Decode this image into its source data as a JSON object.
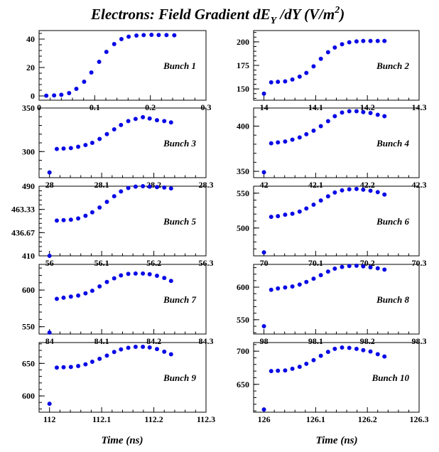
{
  "title": {
    "main": "Electrons: Field Gradient dE",
    "sub": "Y",
    "rest": " /dY (V/m",
    "sup": "2",
    "end": ")"
  },
  "xlabels": [
    "Time (ns)",
    "Time (ns)"
  ],
  "colors": {
    "marker": "#0a0ae6",
    "axes": "#000000",
    "background": "#ffffff"
  },
  "chart_data": [
    {
      "type": "scatter",
      "label": "Bunch 1",
      "xlim": [
        0,
        0.3
      ],
      "ylim": [
        -3,
        46
      ],
      "xticks": [
        "0",
        "0.1",
        "0.2",
        "0.3"
      ],
      "xtick_values": [
        0,
        0.1,
        0.2,
        0.3
      ],
      "yticks": [
        "0",
        "20",
        "40"
      ],
      "ytick_values": [
        0,
        20,
        40
      ],
      "x": [
        0.013,
        0.027,
        0.04,
        0.054,
        0.067,
        0.081,
        0.094,
        0.108,
        0.121,
        0.135,
        0.148,
        0.161,
        0.175,
        0.188,
        0.202,
        0.215,
        0.229,
        0.243
      ],
      "y": [
        0.2,
        0.4,
        0.8,
        2.0,
        5.0,
        10.0,
        16.5,
        24.0,
        31.0,
        36.5,
        40.0,
        41.7,
        42.5,
        42.8,
        43.0,
        42.9,
        42.8,
        42.7
      ]
    },
    {
      "type": "scatter",
      "label": "Bunch 2",
      "xlim": [
        13.98,
        14.3
      ],
      "ylim": [
        138,
        212
      ],
      "xticks": [
        "14",
        "14.1",
        "14.2",
        "14.3"
      ],
      "xtick_values": [
        14.0,
        14.1,
        14.2,
        14.3
      ],
      "yticks": [
        "150",
        "175",
        "200"
      ],
      "ytick_values": [
        150,
        175,
        200
      ],
      "x": [
        14.0,
        14.014,
        14.027,
        14.041,
        14.055,
        14.069,
        14.082,
        14.096,
        14.11,
        14.124,
        14.137,
        14.151,
        14.165,
        14.179,
        14.192,
        14.206,
        14.22,
        14.233
      ],
      "y": [
        145,
        157,
        157.5,
        158,
        160,
        163,
        167,
        174,
        182,
        189,
        194,
        197.5,
        199.5,
        200.5,
        201,
        201,
        201,
        201
      ]
    },
    {
      "type": "scatter",
      "label": "Bunch 3",
      "xlim": [
        27.98,
        28.3
      ],
      "ylim": [
        270,
        350
      ],
      "xticks": [
        "28",
        "28.1",
        "28.2",
        "28.3"
      ],
      "xtick_values": [
        28.0,
        28.1,
        28.2,
        28.3
      ],
      "yticks": [
        "300",
        "350"
      ],
      "ytick_values": [
        300,
        350
      ],
      "x": [
        28.0,
        28.014,
        28.027,
        28.041,
        28.055,
        28.069,
        28.082,
        28.096,
        28.11,
        28.124,
        28.137,
        28.151,
        28.165,
        28.179,
        28.192,
        28.206,
        28.22,
        28.233
      ],
      "y": [
        276,
        303,
        303.5,
        304,
        305.5,
        307.5,
        310,
        314.5,
        320,
        325.5,
        330.5,
        335,
        337.5,
        339.5,
        338,
        336,
        335,
        333.5
      ]
    },
    {
      "type": "scatter",
      "label": "Bunch 4",
      "xlim": [
        41.98,
        42.3
      ],
      "ylim": [
        343,
        420
      ],
      "xticks": [
        "42",
        "42.1",
        "42.2",
        "42.3"
      ],
      "xtick_values": [
        42.0,
        42.1,
        42.2,
        42.3
      ],
      "yticks": [
        "350",
        "400"
      ],
      "ytick_values": [
        350,
        400
      ],
      "x": [
        42.0,
        42.014,
        42.027,
        42.041,
        42.055,
        42.069,
        42.082,
        42.096,
        42.11,
        42.124,
        42.137,
        42.151,
        42.165,
        42.179,
        42.192,
        42.206,
        42.22,
        42.233
      ],
      "y": [
        349,
        381,
        382,
        383,
        385,
        387.5,
        391,
        395,
        400,
        405.5,
        411,
        415,
        416.5,
        416.5,
        415.5,
        414.5,
        412.5,
        411
      ]
    },
    {
      "type": "scatter",
      "label": "Bunch 5",
      "xlim": [
        55.98,
        56.3
      ],
      "ylim": [
        410,
        490
      ],
      "xticks": [
        "56",
        "56.1",
        "56.2",
        "56.3"
      ],
      "xtick_values": [
        56.0,
        56.1,
        56.2,
        56.3
      ],
      "yticks": [
        "410",
        "436.67",
        "463.33",
        "490"
      ],
      "ytick_values": [
        410,
        436.67,
        463.33,
        490
      ],
      "x": [
        56.0,
        56.014,
        56.027,
        56.041,
        56.055,
        56.069,
        56.082,
        56.096,
        56.11,
        56.124,
        56.137,
        56.151,
        56.165,
        56.179,
        56.192,
        56.206,
        56.22,
        56.233
      ],
      "y": [
        410,
        450.5,
        451,
        451.5,
        453,
        456,
        460,
        465.5,
        472,
        478.5,
        484,
        488,
        489.5,
        490,
        489.5,
        489,
        488.5,
        487.5
      ]
    },
    {
      "type": "scatter",
      "label": "Bunch 6",
      "xlim": [
        69.98,
        70.3
      ],
      "ylim": [
        460,
        560
      ],
      "xticks": [
        "70",
        "70.1",
        "70.2",
        "70.3"
      ],
      "xtick_values": [
        70.0,
        70.1,
        70.2,
        70.3
      ],
      "yticks": [
        "500",
        "550"
      ],
      "ytick_values": [
        500,
        550
      ],
      "x": [
        70.0,
        70.014,
        70.027,
        70.041,
        70.055,
        70.069,
        70.082,
        70.096,
        70.11,
        70.124,
        70.137,
        70.151,
        70.165,
        70.179,
        70.192,
        70.206,
        70.22,
        70.233
      ],
      "y": [
        465,
        516,
        517,
        519,
        520.5,
        523.5,
        528,
        533.5,
        539.5,
        545.5,
        551,
        554,
        555.5,
        556,
        555,
        553.5,
        551.5,
        548
      ]
    },
    {
      "type": "scatter",
      "label": "Bunch 7",
      "xlim": [
        83.98,
        84.3
      ],
      "ylim": [
        540,
        635
      ],
      "xticks": [
        "84",
        "84.1",
        "84.2",
        "84.3"
      ],
      "xtick_values": [
        84.0,
        84.1,
        84.2,
        84.3
      ],
      "yticks": [
        "550",
        "600"
      ],
      "ytick_values": [
        550,
        600
      ],
      "x": [
        84.0,
        84.014,
        84.027,
        84.041,
        84.055,
        84.069,
        84.082,
        84.096,
        84.11,
        84.124,
        84.137,
        84.151,
        84.165,
        84.179,
        84.192,
        84.206,
        84.22,
        84.233
      ],
      "y": [
        542,
        588,
        589.5,
        591,
        592.5,
        595.5,
        599,
        605,
        611,
        616,
        620,
        622,
        622.5,
        622.5,
        621.5,
        619.5,
        616.5,
        612.5
      ]
    },
    {
      "type": "scatter",
      "label": "Bunch 8",
      "xlim": [
        97.98,
        98.3
      ],
      "ylim": [
        528,
        635
      ],
      "xticks": [
        "98",
        "98.1",
        "98.2",
        "98.3"
      ],
      "xtick_values": [
        98.0,
        98.1,
        98.2,
        98.3
      ],
      "yticks": [
        "550",
        "600"
      ],
      "ytick_values": [
        550,
        600
      ],
      "x": [
        98.0,
        98.014,
        98.027,
        98.041,
        98.055,
        98.069,
        98.082,
        98.096,
        98.11,
        98.124,
        98.137,
        98.151,
        98.165,
        98.179,
        98.192,
        98.206,
        98.22,
        98.233
      ],
      "y": [
        540,
        596,
        598,
        599.5,
        601,
        604,
        608,
        613,
        618.5,
        624,
        628.5,
        631,
        632.5,
        633,
        632,
        630.5,
        629,
        627
      ]
    },
    {
      "type": "scatter",
      "label": "Bunch 9",
      "xlim": [
        111.98,
        112.3
      ],
      "ylim": [
        575,
        682
      ],
      "xticks": [
        "112",
        "112.1",
        "112.2",
        "112.3"
      ],
      "xtick_values": [
        112.0,
        112.1,
        112.2,
        112.3
      ],
      "yticks": [
        "600",
        "650"
      ],
      "ytick_values": [
        600,
        650
      ],
      "x": [
        112.0,
        112.014,
        112.027,
        112.041,
        112.055,
        112.069,
        112.082,
        112.096,
        112.11,
        112.124,
        112.137,
        112.151,
        112.165,
        112.179,
        112.192,
        112.206,
        112.22,
        112.233
      ],
      "y": [
        588,
        643.5,
        644,
        644.5,
        646,
        648.5,
        652.5,
        657,
        662,
        667.5,
        671.5,
        674,
        675.5,
        675.5,
        674.5,
        672,
        668,
        664
      ]
    },
    {
      "type": "scatter",
      "label": "Bunch 10",
      "xlim": [
        125.98,
        126.3
      ],
      "ylim": [
        608,
        713
      ],
      "xticks": [
        "126",
        "126.1",
        "126.2",
        "126.3"
      ],
      "xtick_values": [
        126.0,
        126.1,
        126.2,
        126.3
      ],
      "yticks": [
        "650",
        "700"
      ],
      "ytick_values": [
        650,
        700
      ],
      "x": [
        126.0,
        126.014,
        126.027,
        126.041,
        126.055,
        126.069,
        126.082,
        126.096,
        126.11,
        126.124,
        126.137,
        126.151,
        126.165,
        126.179,
        126.192,
        126.206,
        126.22,
        126.233
      ],
      "y": [
        612,
        670,
        670.5,
        671,
        673.5,
        676.5,
        681,
        686.5,
        693,
        699,
        703.5,
        705.5,
        705,
        703.5,
        701.5,
        699.5,
        695.5,
        692
      ]
    }
  ]
}
